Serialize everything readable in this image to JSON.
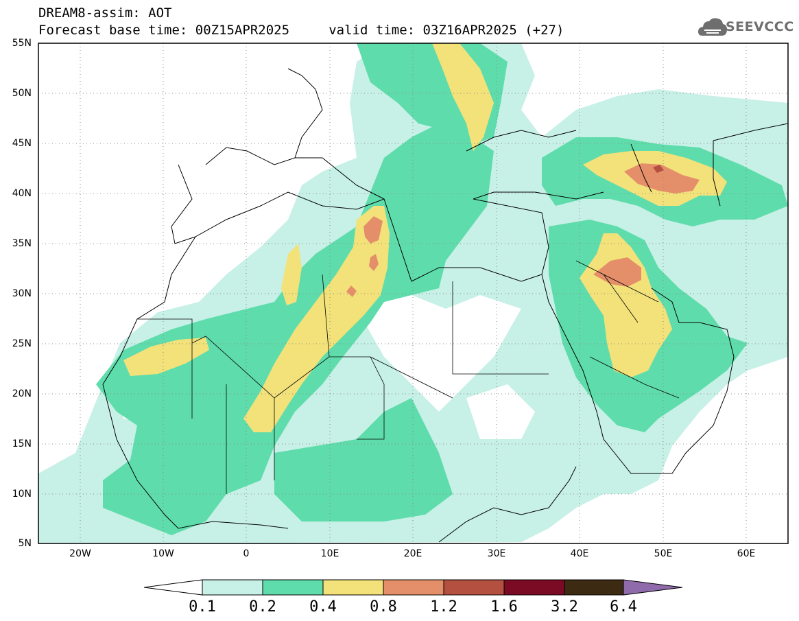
{
  "header": {
    "title_line1": "DREAM8-assim: AOT",
    "title_line2": "Forecast base time: 00Z15APR2025     valid time: 03Z16APR2025 (+27)"
  },
  "logo": {
    "text": "SEEVCCC",
    "icon": "cloud-logo-icon"
  },
  "map": {
    "lat_labels": [
      "55N",
      "50N",
      "45N",
      "40N",
      "35N",
      "30N",
      "25N",
      "20N",
      "15N",
      "10N",
      "5N"
    ],
    "lon_labels": [
      "20W",
      "10W",
      "0",
      "10E",
      "20E",
      "30E",
      "40E",
      "50E",
      "60E"
    ],
    "lat_range": [
      5,
      55
    ],
    "lon_range": [
      -25,
      65
    ],
    "grid": "dotted"
  },
  "colorbar": {
    "labels": [
      "0.1",
      "0.2",
      "0.4",
      "0.8",
      "1.2",
      "1.6",
      "3.2",
      "6.4"
    ],
    "colors": [
      "#ffffff",
      "#c7f0e7",
      "#5fdcab",
      "#f3e27a",
      "#e58f6a",
      "#b4503f",
      "#7b0a25",
      "#3d2a12",
      "#8f6bab"
    ]
  }
}
